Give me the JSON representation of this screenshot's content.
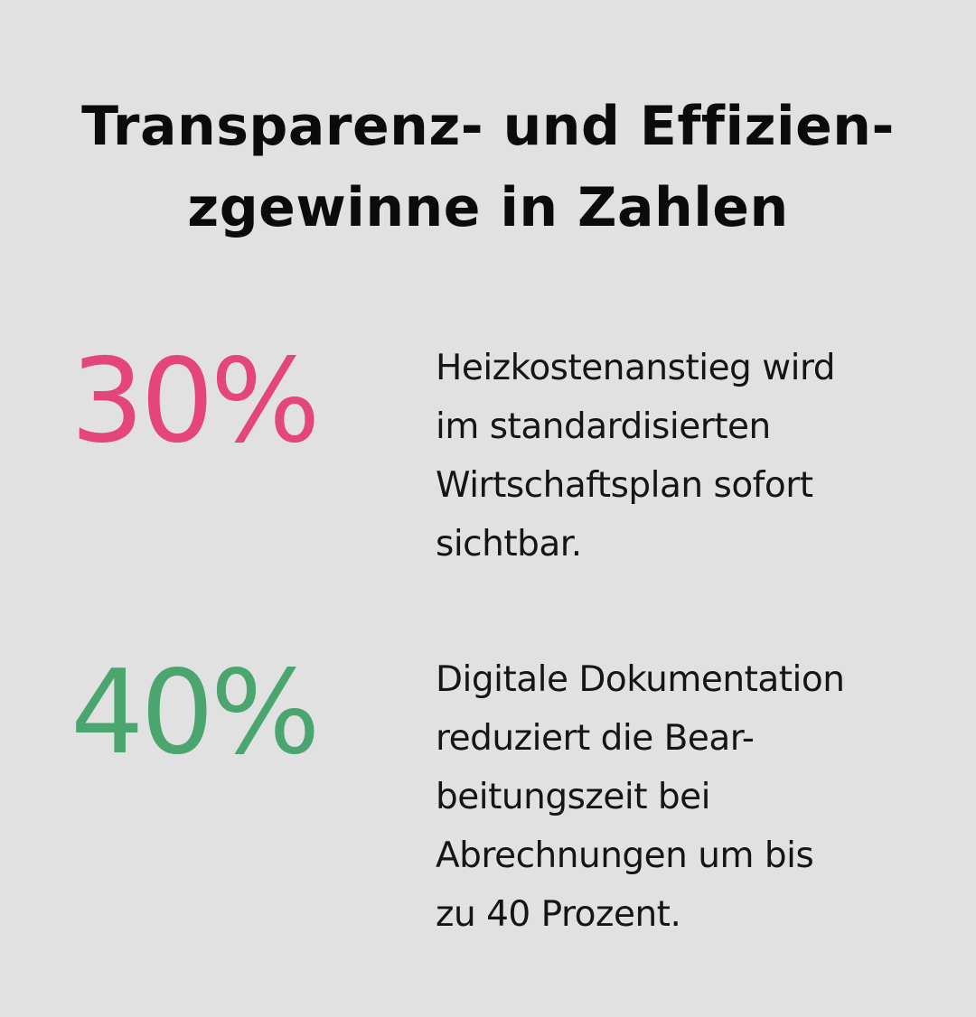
{
  "title": {
    "line1": "Transparenz- und Effizien-",
    "line2": "zgewinne in Zahlen"
  },
  "stats": [
    {
      "value": "30%",
      "color": "#e4467c",
      "text_lines": [
        "Heizkostenanstieg wird",
        "im standardisierten",
        "Wirtschaftsplan sofort",
        "sichtbar."
      ]
    },
    {
      "value": "40%",
      "color": "#4aa56e",
      "text_lines": [
        "Digitale Dokumentation",
        "reduziert die Bear-",
        "beitungszeit bei",
        "Abrechnungen um bis",
        "zu 40 Prozent."
      ]
    }
  ]
}
